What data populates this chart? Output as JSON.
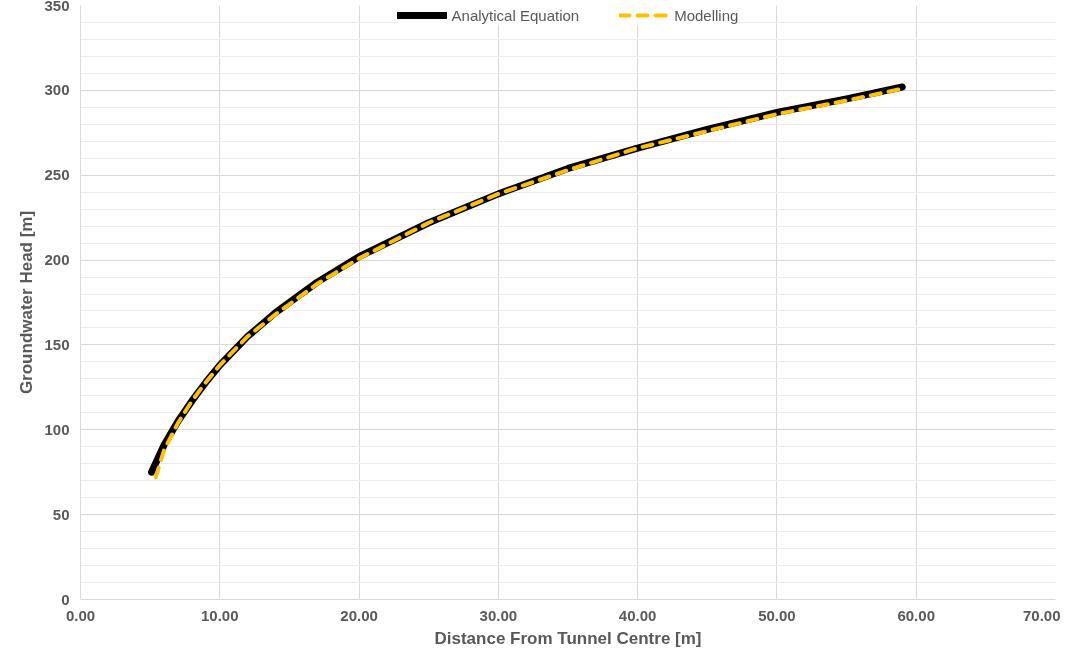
{
  "chart_data": {
    "type": "line",
    "xlabel": "Distance From Tunnel Centre [m]",
    "ylabel": "Groundwater Head [m]",
    "xlim": [
      0,
      70
    ],
    "ylim": [
      0,
      350
    ],
    "xticks": [
      {
        "value": 0,
        "label": "0.00"
      },
      {
        "value": 10,
        "label": "10.00"
      },
      {
        "value": 20,
        "label": "20.00"
      },
      {
        "value": 30,
        "label": "30.00"
      },
      {
        "value": 40,
        "label": "40.00"
      },
      {
        "value": 50,
        "label": "50.00"
      },
      {
        "value": 60,
        "label": "60.00"
      },
      {
        "value": 70,
        "label": "70.00"
      }
    ],
    "yticks": [
      0,
      50,
      100,
      150,
      200,
      250,
      300,
      350
    ],
    "grid": true,
    "legend": "top",
    "marker": "none",
    "series": [
      {
        "name": "Analytical Equation",
        "color": "#000000",
        "line_style": "solid",
        "x": [
          5.1,
          6,
          7,
          8,
          9,
          10,
          12,
          14,
          17,
          20,
          25,
          30,
          35,
          40,
          45,
          50,
          55,
          59
        ],
        "values": [
          75,
          91,
          105,
          117,
          128,
          138,
          155,
          169,
          187,
          202,
          222,
          239,
          254,
          266,
          277,
          287,
          295,
          302
        ]
      },
      {
        "name": "Modelling",
        "color": "#ffc000",
        "line_style": "dashed",
        "x": [
          5.4,
          6,
          7,
          8,
          9,
          10,
          12,
          14,
          17,
          20,
          25,
          30,
          35,
          40,
          45,
          50,
          55,
          59
        ],
        "values": [
          72,
          88,
          104,
          117,
          128,
          138,
          155,
          168,
          186,
          201,
          222,
          239,
          253,
          266,
          276,
          286,
          294,
          301
        ]
      }
    ]
  }
}
